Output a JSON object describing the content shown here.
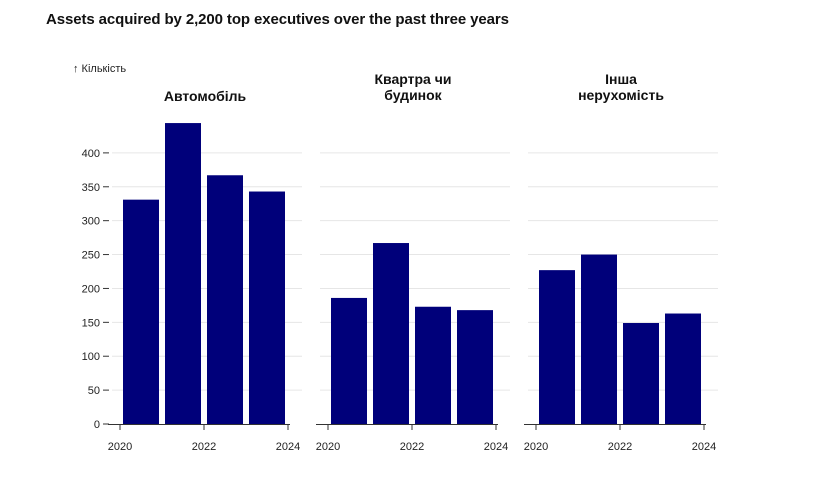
{
  "title": "Assets acquired by 2,200 top executives over the past three years",
  "chart_data": {
    "type": "bar",
    "y_label": "↑ Кількість",
    "ylim": [
      0,
      450
    ],
    "y_ticks": [
      0,
      50,
      100,
      150,
      200,
      250,
      300,
      350,
      400
    ],
    "x_ticks": [
      "2020",
      "2022",
      "2024"
    ],
    "x": [
      2020.5,
      2021.5,
      2022.5,
      2023.5
    ],
    "grid": "horizontal",
    "bar_color": "#00007a",
    "facets": [
      {
        "title_lines": [
          "Автомобіль"
        ],
        "values": [
          331,
          444,
          367,
          343
        ]
      },
      {
        "title_lines": [
          "Квартра чи",
          "будинок"
        ],
        "values": [
          186,
          267,
          173,
          168
        ]
      },
      {
        "title_lines": [
          "Інша",
          "нерухомість"
        ],
        "values": [
          227,
          250,
          149,
          163
        ]
      }
    ]
  }
}
